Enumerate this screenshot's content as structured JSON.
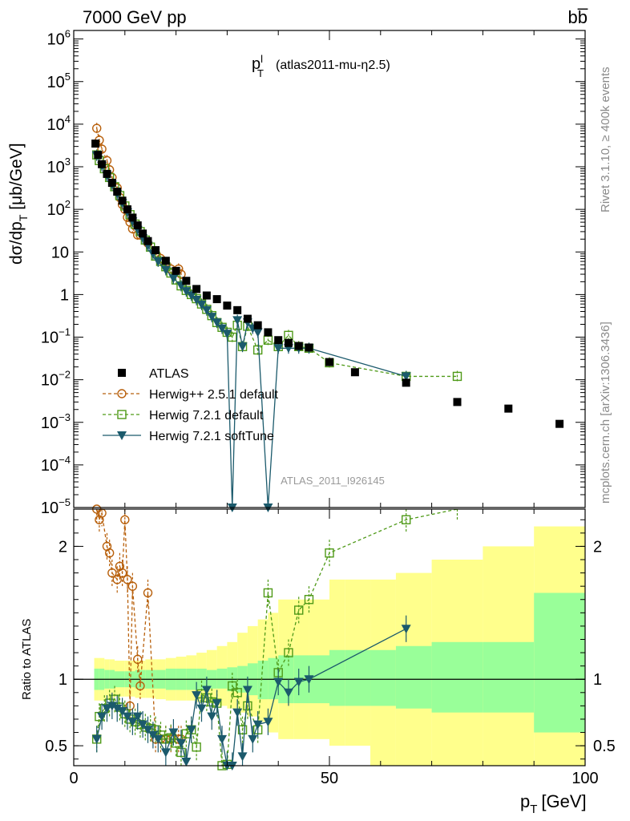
{
  "header": {
    "left": "7000 GeV pp",
    "right": "bb̅"
  },
  "side": {
    "rivet": "Rivet 3.1.10, ≥ 400k events",
    "mcplots": "mcplots.cern.ch [arXiv:1306.3436]"
  },
  "colors": {
    "data": "#000000",
    "herwigpp": "#b8600c",
    "herwig721": "#4f9a18",
    "softtune": "#1b5a6c",
    "band_outer": "#ffff8c",
    "band_inner": "#99ff99"
  },
  "chart_data": {
    "type": "scatter",
    "title": "p_T^l (atlas2011-mu-η2.5)",
    "title_main": "p",
    "title_sup": "l",
    "title_sub": "T",
    "title_rest": "(atlas2011-mu-η2.5)",
    "analysis_label": "ATLAS_2011_I926145",
    "xlabel_main": "p",
    "xlabel_sub": "T",
    "xlabel_rest": "[GeV]",
    "ylabel_top": "dσ/dp_T [μb/GeV]",
    "ylabel_bottom": "Ratio to ATLAS",
    "xlim": [
      0,
      100
    ],
    "ylim_top_log": [
      -5,
      6.2
    ],
    "ylim_ratio": [
      0.35,
      2.28
    ],
    "x_ticks": [
      0,
      50,
      100
    ],
    "x_tick_labels": [
      "0",
      "50",
      "100"
    ],
    "y_ticks_top": [
      {
        "exp": -5,
        "label": "10",
        "sup": "−5"
      },
      {
        "exp": -4,
        "label": "10",
        "sup": "−4"
      },
      {
        "exp": -3,
        "label": "10",
        "sup": "−3"
      },
      {
        "exp": -2,
        "label": "10",
        "sup": "−2"
      },
      {
        "exp": -1,
        "label": "10",
        "sup": "−1"
      },
      {
        "exp": 0,
        "label": "1",
        "sup": ""
      },
      {
        "exp": 1,
        "label": "10",
        "sup": ""
      },
      {
        "exp": 2,
        "label": "10",
        "sup": "2"
      },
      {
        "exp": 3,
        "label": "10",
        "sup": "3"
      },
      {
        "exp": 4,
        "label": "10",
        "sup": "4"
      },
      {
        "exp": 5,
        "label": "10",
        "sup": "5"
      },
      {
        "exp": 6,
        "label": "10",
        "sup": "6"
      }
    ],
    "y_ticks_ratio": [
      {
        "value": 0.5,
        "label": "0.5"
      },
      {
        "value": 1,
        "label": "1"
      },
      {
        "value": 2,
        "label": "2"
      }
    ],
    "legend": [
      {
        "label": "ATLAS",
        "series": "data"
      },
      {
        "label": "Herwig++ 2.5.1 default",
        "series": "herwigpp"
      },
      {
        "label": "Herwig 7.2.1 default",
        "series": "herwig721"
      },
      {
        "label": "Herwig 7.2.1 softTune",
        "series": "softtune"
      }
    ],
    "atlas": {
      "name": "ATLAS",
      "x": [
        4.25,
        4.75,
        5.5,
        6.5,
        7.5,
        8.5,
        9.5,
        10.5,
        11.5,
        12.5,
        13.5,
        14.5,
        16,
        18,
        20,
        22,
        24,
        26,
        28,
        30,
        32,
        34,
        36,
        38,
        40,
        42,
        44,
        46,
        50,
        55,
        65,
        75,
        85,
        95
      ],
      "y": [
        3500,
        1900,
        1150,
        680,
        420,
        260,
        160,
        100,
        64,
        42,
        27,
        18,
        11,
        6.2,
        3.6,
        2.1,
        1.35,
        0.95,
        0.78,
        0.55,
        0.43,
        0.27,
        0.19,
        0.13,
        0.085,
        0.073,
        0.062,
        0.057,
        0.026,
        0.015,
        0.0085,
        0.003,
        0.0021,
        0.00092
      ]
    },
    "herwigpp": {
      "name": "Herwig++ 2.5.1 default",
      "x": [
        4.5,
        5,
        5.5,
        6.5,
        7,
        7.5,
        8.5,
        9,
        9.5,
        10,
        10.5,
        11,
        11.5,
        12.5,
        13,
        14.5,
        16,
        17,
        18,
        19,
        20.5,
        21
      ],
      "y": [
        8000,
        4200,
        2600,
        1400,
        850,
        560,
        320,
        190,
        130,
        100,
        65,
        50,
        35,
        25,
        25,
        16,
        9,
        7,
        5,
        4,
        4,
        3
      ],
      "ratio": [
        2.28,
        2.2,
        2.25,
        2.0,
        1.95,
        1.8,
        1.75,
        1.85,
        1.8,
        2.2,
        1.75,
        0.8,
        1.7,
        1.15,
        0.95,
        1.65,
        0.55,
        0.55,
        0.55,
        0.55,
        0.55,
        0.55
      ]
    },
    "herwig721": {
      "name": "Herwig 7.2.1 default",
      "x": [
        4.5,
        5,
        6,
        7,
        8,
        9,
        10,
        11,
        12,
        13,
        14,
        15,
        16,
        17,
        18,
        19,
        20,
        21,
        22,
        23,
        24,
        25,
        26,
        27,
        28,
        29,
        30,
        31,
        32,
        33,
        34,
        36,
        38,
        40,
        42,
        44,
        46,
        50,
        65,
        75
      ],
      "y": [
        1900,
        1400,
        900,
        560,
        340,
        210,
        120,
        75,
        45,
        30,
        19,
        13,
        8,
        6,
        4.5,
        3.2,
        2.2,
        1.6,
        1.25,
        1.0,
        0.8,
        0.6,
        0.45,
        0.32,
        0.22,
        0.17,
        0.13,
        0.1,
        0.19,
        0.06,
        0.18,
        0.05,
        0.085,
        0.06,
        0.11,
        0.06,
        0.055,
        0.025,
        0.012,
        0.012
      ],
      "ratio": [
        0.55,
        0.72,
        0.78,
        0.82,
        0.85,
        0.79,
        0.74,
        0.7,
        0.68,
        0.66,
        0.64,
        0.63,
        0.62,
        0.58,
        0.55,
        0.56,
        0.52,
        0.45,
        0.59,
        0.62,
        0.49,
        0.89,
        0.86,
        0.83,
        0.82,
        0.35,
        0.36,
        0.95,
        0.9,
        0.62,
        0.8,
        0.62,
        1.65,
        1.05,
        1.2,
        1.52,
        1.6,
        1.95,
        2.2,
        2.3
      ]
    },
    "softtune": {
      "name": "Herwig 7.2.1 softTune",
      "x": [
        4.5,
        5.5,
        6.5,
        7.5,
        8.5,
        9.5,
        10.5,
        11.5,
        12.5,
        13.5,
        14.5,
        15.5,
        16.5,
        18,
        19.5,
        21,
        22,
        23,
        24,
        25,
        26,
        27,
        28,
        29,
        30,
        31,
        32,
        33,
        34,
        35,
        36,
        38,
        40,
        42,
        44,
        46,
        65
      ],
      "y": [
        1850,
        1050,
        620,
        380,
        230,
        140,
        85,
        52,
        33,
        21,
        14,
        9,
        6,
        3.8,
        2.4,
        1.6,
        1.2,
        0.95,
        0.75,
        0.58,
        0.43,
        0.3,
        0.22,
        0.16,
        0.12,
        1e-05,
        0.25,
        0.06,
        0.22,
        0.16,
        0.13,
        1e-05,
        0.055,
        0.055,
        0.055,
        0.055,
        0.012
      ],
      "ratio": [
        0.55,
        0.72,
        0.78,
        0.8,
        0.78,
        0.76,
        0.72,
        0.68,
        0.72,
        0.66,
        0.62,
        0.58,
        0.55,
        0.45,
        0.6,
        0.52,
        0.38,
        0.62,
        0.88,
        0.78,
        0.92,
        0.72,
        0.82,
        0.55,
        0.35,
        0.35,
        0.75,
        0.42,
        0.92,
        0.55,
        0.66,
        0.68,
        0.98,
        0.9,
        0.98,
        1.0,
        1.38
      ]
    },
    "bands": {
      "edges": [
        4,
        5,
        6,
        7,
        8,
        10,
        12,
        14,
        16,
        18,
        20,
        22,
        24,
        26,
        28,
        30,
        32,
        34,
        36,
        38,
        40,
        43,
        46,
        50,
        53,
        58,
        63,
        70,
        80,
        90,
        100
      ],
      "inner_lo": [
        0.92,
        0.92,
        0.93,
        0.93,
        0.94,
        0.94,
        0.93,
        0.93,
        0.93,
        0.92,
        0.92,
        0.92,
        0.92,
        0.93,
        0.93,
        0.91,
        0.9,
        0.88,
        0.85,
        0.85,
        0.82,
        0.82,
        0.82,
        0.8,
        0.8,
        0.8,
        0.78,
        0.75,
        0.75,
        0.6,
        0.6
      ],
      "inner_hi": [
        1.08,
        1.08,
        1.07,
        1.07,
        1.06,
        1.06,
        1.07,
        1.07,
        1.07,
        1.08,
        1.08,
        1.08,
        1.08,
        1.07,
        1.08,
        1.09,
        1.1,
        1.12,
        1.14,
        1.16,
        1.18,
        1.18,
        1.18,
        1.22,
        1.22,
        1.22,
        1.25,
        1.28,
        1.28,
        1.65,
        1.65
      ],
      "outer_lo": [
        0.84,
        0.84,
        0.85,
        0.86,
        0.87,
        0.87,
        0.86,
        0.86,
        0.85,
        0.84,
        0.84,
        0.84,
        0.83,
        0.82,
        0.8,
        0.78,
        0.75,
        0.72,
        0.68,
        0.6,
        0.55,
        0.55,
        0.55,
        0.5,
        0.5,
        0.35,
        0.35,
        0.35,
        0.35,
        0.35,
        0.35
      ],
      "outer_hi": [
        1.16,
        1.16,
        1.15,
        1.15,
        1.14,
        1.14,
        1.14,
        1.15,
        1.15,
        1.16,
        1.17,
        1.18,
        1.2,
        1.22,
        1.25,
        1.28,
        1.35,
        1.4,
        1.45,
        1.5,
        1.6,
        1.6,
        1.6,
        1.75,
        1.75,
        1.75,
        1.8,
        1.9,
        2.0,
        2.15,
        2.15
      ]
    }
  }
}
